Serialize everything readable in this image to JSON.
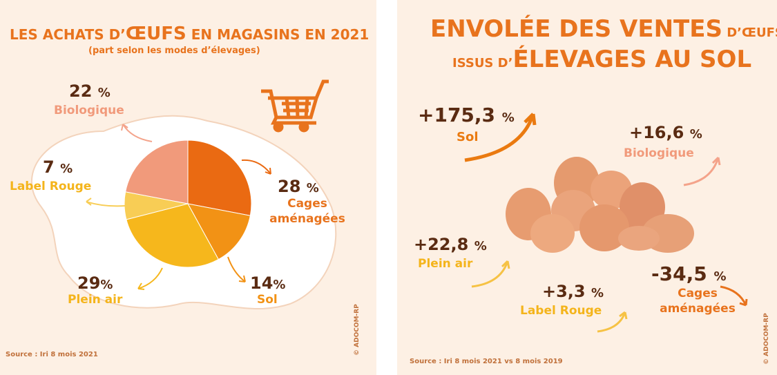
{
  "left": {
    "title_part1": "LES ACHATS D’",
    "title_big": "ŒUFS",
    "title_part2": " EN MAGASINS EN 2021",
    "subtitle": "(part selon les modes d’élevages)",
    "source": "Source : Iri 8 mois 2021",
    "credit": "© ADOCOM-RP",
    "icon": "shopping-cart-icon"
  },
  "right": {
    "title_line1_big": "ENVOLÉE DES VENTES",
    "title_line1_small": " D’ŒUFS",
    "title_line2_small": "ISSUS D’",
    "title_line2_big": "ÉLEVAGES AU SOL",
    "source": "Source : Iri 8 mois 2021 vs 8 mois 2019",
    "credit": "© ADOCOM-RP",
    "icon": "eggs-image"
  },
  "pct_sign": "%",
  "chart_data": [
    {
      "type": "pie",
      "title": "LES ACHATS D’ŒUFS EN MAGASINS EN 2021",
      "subtitle": "(part selon les modes d’élevages)",
      "slices": [
        {
          "label": "Cages aménagées",
          "value": 28,
          "display": "28",
          "color": "#ea6a12"
        },
        {
          "label": "Sol",
          "value": 14,
          "display": "14",
          "color": "#f29215"
        },
        {
          "label": "Plein air",
          "value": 29,
          "display": "29",
          "color": "#f6b71c"
        },
        {
          "label": "Label Rouge",
          "value": 7,
          "display": "7",
          "color": "#f8cd55"
        },
        {
          "label": "Biologique",
          "value": 22,
          "display": "22",
          "color": "#f19a7b"
        }
      ]
    },
    {
      "type": "table",
      "title": "ENVOLÉE DES VENTES D’ŒUFS ISSUS D’ÉLEVAGES AU SOL",
      "rows": [
        {
          "label": "Sol",
          "value": 175.3,
          "display": "+175,3"
        },
        {
          "label": "Biologique",
          "value": 16.6,
          "display": "+16,6"
        },
        {
          "label": "Plein air",
          "value": 22.8,
          "display": "+22,8"
        },
        {
          "label": "Label Rouge",
          "value": 3.3,
          "display": "+3,3"
        },
        {
          "label": "Cages aménagées",
          "value": -34.5,
          "display": "-34,5"
        }
      ]
    }
  ]
}
